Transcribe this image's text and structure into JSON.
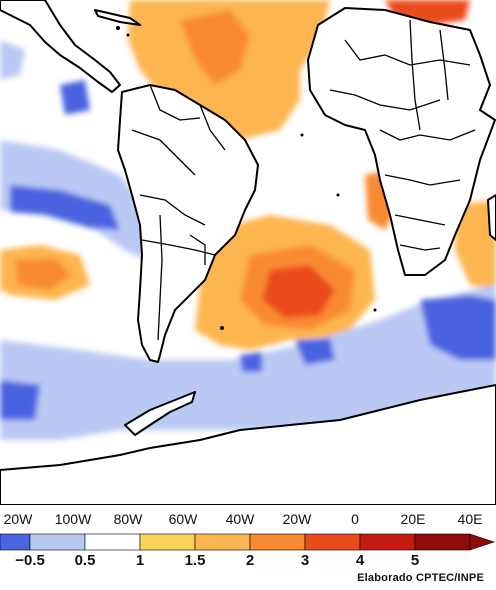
{
  "map": {
    "longitude_labels": [
      "20W",
      "100W",
      "80W",
      "60W",
      "40W",
      "20W",
      "0",
      "20E",
      "40E"
    ]
  },
  "legend": {
    "bins": [
      {
        "color": "#4a64e0",
        "label": ""
      },
      {
        "color": "#b9c9f4",
        "label": "−0.5"
      },
      {
        "color": "#ffffff",
        "label": "0.5"
      },
      {
        "color": "#f9d45a",
        "label": "1"
      },
      {
        "color": "#fdb550",
        "label": "1.5"
      },
      {
        "color": "#f98a33",
        "label": "2"
      },
      {
        "color": "#ea4b1c",
        "label": "3"
      },
      {
        "color": "#c41a10",
        "label": "4"
      },
      {
        "color": "#8e0d0a",
        "label": "5"
      }
    ],
    "labels": [
      "−0.5",
      "0.5",
      "1",
      "1.5",
      "2",
      "3",
      "4",
      "5"
    ]
  },
  "credit": "Elaborado CPTEC/INPE"
}
